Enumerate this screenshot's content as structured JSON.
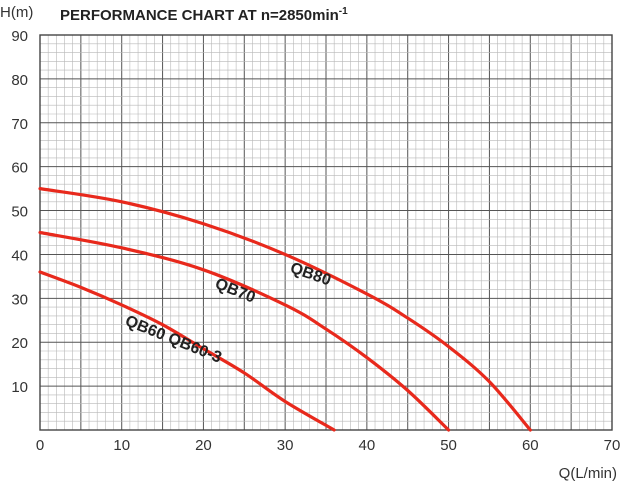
{
  "chart_data": {
    "type": "line",
    "title_main": "PERFORMANCE CHART AT n=2850min",
    "title_sup": "-1",
    "xlabel": "Q(L/min)",
    "ylabel": "H(m)",
    "xlim": [
      0,
      70
    ],
    "ylim": [
      0,
      90
    ],
    "x_ticks": [
      "0",
      "10",
      "20",
      "30",
      "40",
      "50",
      "60",
      "70"
    ],
    "y_ticks": [
      "10",
      "20",
      "30",
      "40",
      "50",
      "60",
      "70",
      "80",
      "90"
    ],
    "grid": true,
    "line_color": "#e8291c",
    "series": [
      {
        "name": "QB80",
        "x": [
          0,
          10,
          20,
          30,
          40,
          45,
          50,
          55,
          60
        ],
        "y": [
          55,
          52,
          47,
          40,
          31,
          25.5,
          19,
          11,
          0
        ]
      },
      {
        "name": "QB70",
        "x": [
          0,
          10,
          20,
          30,
          35,
          40,
          45,
          50
        ],
        "y": [
          45,
          41.5,
          36.5,
          28.5,
          23,
          16.5,
          9,
          0
        ]
      },
      {
        "name": "QB60 QB60-3",
        "x": [
          0,
          5,
          10,
          15,
          20,
          25,
          30,
          36
        ],
        "y": [
          36,
          32.5,
          28.5,
          24,
          18.5,
          13,
          6.5,
          0
        ]
      }
    ]
  }
}
